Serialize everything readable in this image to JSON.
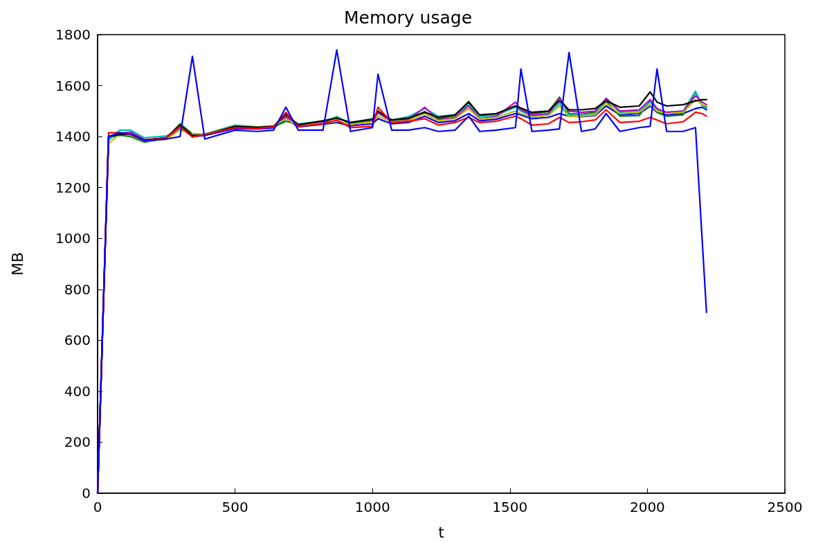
{
  "chart_data": {
    "type": "line",
    "title": "Memory usage",
    "xlabel": "t",
    "ylabel": "MB",
    "x": [
      0,
      40,
      80,
      120,
      170,
      250,
      300,
      345,
      390,
      500,
      580,
      640,
      685,
      730,
      820,
      870,
      920,
      1000,
      1020,
      1070,
      1130,
      1190,
      1240,
      1300,
      1350,
      1390,
      1450,
      1520,
      1540,
      1580,
      1640,
      1680,
      1715,
      1760,
      1810,
      1850,
      1900,
      1970,
      2010,
      2035,
      2070,
      2130,
      2175,
      2200,
      2215
    ],
    "xlim": [
      0,
      2500
    ],
    "xticks": [
      0,
      500,
      1000,
      1500,
      2000,
      2500
    ],
    "ylim": [
      0,
      1800
    ],
    "yticks": [
      0,
      200,
      400,
      600,
      800,
      1000,
      1200,
      1400,
      1600,
      1800
    ],
    "grid": false,
    "marker": "none",
    "line_style": "solid",
    "series": [
      {
        "color": "#0000ff",
        "values": [
          0,
          1398,
          1405,
          1408,
          1384,
          1390,
          1435,
          1400,
          1404,
          1432,
          1430,
          1434,
          1470,
          1438,
          1448,
          1455,
          1442,
          1450,
          1470,
          1450,
          1455,
          1480,
          1455,
          1462,
          1490,
          1462,
          1468,
          1490,
          1485,
          1470,
          1475,
          1490,
          1480,
          1478,
          1482,
          1520,
          1485,
          1490,
          1520,
          1495,
          1485,
          1490,
          1510,
          1515,
          1505
        ]
      },
      {
        "color": "#008000",
        "values": [
          0,
          1395,
          1405,
          1400,
          1378,
          1392,
          1450,
          1410,
          1408,
          1440,
          1435,
          1438,
          1460,
          1448,
          1455,
          1478,
          1450,
          1462,
          1500,
          1462,
          1468,
          1498,
          1470,
          1482,
          1538,
          1480,
          1488,
          1520,
          1505,
          1490,
          1498,
          1555,
          1490,
          1488,
          1495,
          1540,
          1480,
          1482,
          1540,
          1495,
          1480,
          1485,
          1575,
          1520,
          1515
        ]
      },
      {
        "color": "#00bfbf",
        "values": [
          null,
          1385,
          1425,
          1425,
          1395,
          1402,
          1430,
          1405,
          1410,
          1445,
          1438,
          1440,
          1480,
          1450,
          1460,
          1475,
          1455,
          1470,
          1490,
          1465,
          1478,
          1510,
          1480,
          1485,
          1525,
          1478,
          1483,
          1515,
          1500,
          1480,
          1488,
          1530,
          1485,
          1482,
          1488,
          1550,
          1495,
          1500,
          1535,
          1505,
          1495,
          1500,
          1578,
          1520,
          1510
        ]
      },
      {
        "color": "#bf00bf",
        "values": [
          0,
          1400,
          1412,
          1418,
          1388,
          1393,
          1438,
          1402,
          1406,
          1438,
          1436,
          1440,
          1478,
          1440,
          1455,
          1462,
          1445,
          1460,
          1495,
          1458,
          1465,
          1515,
          1465,
          1475,
          1520,
          1470,
          1478,
          1535,
          1505,
          1485,
          1490,
          1550,
          1500,
          1495,
          1500,
          1550,
          1500,
          1505,
          1545,
          1510,
          1495,
          1500,
          1560,
          1535,
          1525
        ]
      },
      {
        "color": "#bfbf00",
        "values": [
          null,
          1372,
          1410,
          1405,
          1384,
          1390,
          1425,
          1410,
          1406,
          1442,
          1437,
          1442,
          1470,
          1442,
          1452,
          1460,
          1448,
          1458,
          1480,
          1458,
          1462,
          1490,
          1462,
          1470,
          1510,
          1468,
          1475,
          1500,
          1490,
          1475,
          1482,
          1520,
          1478,
          1480,
          1485,
          1530,
          1490,
          1495,
          1525,
          1500,
          1490,
          1495,
          1545,
          1525,
          1520
        ]
      },
      {
        "color": "#000000",
        "values": [
          0,
          1400,
          1408,
          1410,
          1386,
          1396,
          1445,
          1404,
          1406,
          1440,
          1436,
          1440,
          1488,
          1446,
          1462,
          1472,
          1455,
          1468,
          1500,
          1465,
          1472,
          1495,
          1475,
          1485,
          1535,
          1485,
          1490,
          1520,
          1512,
          1495,
          1500,
          1540,
          1505,
          1505,
          1510,
          1540,
          1515,
          1520,
          1575,
          1535,
          1520,
          1525,
          1540,
          1545,
          1545
        ]
      },
      {
        "color": "#ff0000",
        "values": [
          0,
          1415,
          1415,
          1408,
          1385,
          1395,
          1440,
          1398,
          1408,
          1435,
          1432,
          1438,
          1495,
          1440,
          1450,
          1465,
          1435,
          1440,
          1515,
          1455,
          1460,
          1470,
          1445,
          1455,
          1475,
          1455,
          1460,
          1480,
          1470,
          1445,
          1450,
          1475,
          1455,
          1458,
          1465,
          1505,
          1455,
          1460,
          1475,
          1465,
          1450,
          1458,
          1495,
          1490,
          1480
        ]
      },
      {
        "color": "#0000ff",
        "values": [
          0,
          1400,
          1415,
          1410,
          1385,
          1390,
          1400,
          1715,
          1390,
          1425,
          1420,
          1425,
          1515,
          1425,
          1425,
          1740,
          1420,
          1435,
          1645,
          1425,
          1425,
          1435,
          1420,
          1425,
          1480,
          1420,
          1425,
          1435,
          1665,
          1420,
          1425,
          1430,
          1730,
          1420,
          1430,
          1490,
          1420,
          1435,
          1440,
          1665,
          1420,
          1420,
          1435,
          980,
          710
        ]
      }
    ]
  }
}
